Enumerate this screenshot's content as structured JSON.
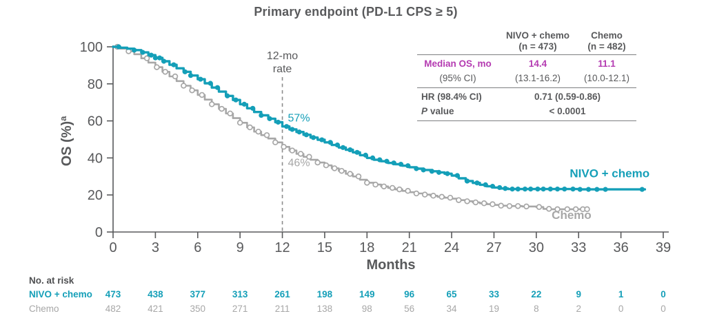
{
  "title": "Primary endpoint (PD-L1 CPS ≥ 5)",
  "colors": {
    "nivo": "#149FB8",
    "chemo": "#A7A7A7",
    "text": "#58595B",
    "magenta": "#B43BB1",
    "dash": "#8C8C8C"
  },
  "chart_data": {
    "type": "line",
    "subtype": "kaplan-meier-step",
    "title": "Primary endpoint (PD-L1 CPS ≥ 5)",
    "xlabel": "Months",
    "ylabel": "OS (%)",
    "ylabel_superscript": "a",
    "xlim": [
      0,
      39
    ],
    "ylim": [
      0,
      100
    ],
    "xticks": [
      0,
      3,
      6,
      9,
      12,
      15,
      18,
      21,
      24,
      27,
      30,
      33,
      36,
      39
    ],
    "yticks": [
      0,
      20,
      40,
      60,
      80,
      100
    ],
    "grid": false,
    "annotations": {
      "rate_line_label": "12-mo rate",
      "rate_line_x": 12,
      "nivo_rate_label": "57%",
      "nivo_rate_value": 57,
      "chemo_rate_label": "46%",
      "chemo_rate_value": 46
    },
    "series": [
      {
        "name": "Chemo",
        "color": "#A7A7A7",
        "marker": "open-circle",
        "points": [
          [
            0,
            100
          ],
          [
            0.5,
            99
          ],
          [
            1,
            97.6
          ],
          [
            1.5,
            96
          ],
          [
            2,
            93.8
          ],
          [
            2.5,
            91.5
          ],
          [
            3,
            89
          ],
          [
            3.5,
            86.5
          ],
          [
            4,
            84
          ],
          [
            4.5,
            81.5
          ],
          [
            5,
            79
          ],
          [
            5.5,
            76.5
          ],
          [
            6,
            74
          ],
          [
            6.5,
            71.5
          ],
          [
            7,
            69
          ],
          [
            7.5,
            66.5
          ],
          [
            8,
            64
          ],
          [
            8.5,
            61.5
          ],
          [
            9,
            59
          ],
          [
            9.5,
            56.5
          ],
          [
            10,
            54.2
          ],
          [
            10.5,
            52.3
          ],
          [
            11,
            50.5
          ],
          [
            11.5,
            48.4
          ],
          [
            12,
            46
          ],
          [
            12.5,
            44
          ],
          [
            13,
            42.2
          ],
          [
            13.5,
            40.6
          ],
          [
            14,
            39
          ],
          [
            14.5,
            37.5
          ],
          [
            15,
            36
          ],
          [
            15.5,
            34.4
          ],
          [
            16,
            33
          ],
          [
            16.5,
            31.4
          ],
          [
            17,
            30
          ],
          [
            17.5,
            28.2
          ],
          [
            18,
            26.6
          ],
          [
            18.5,
            25.6
          ],
          [
            19,
            24.6
          ],
          [
            19.5,
            23.8
          ],
          [
            20,
            23
          ],
          [
            20.5,
            22.2
          ],
          [
            21,
            21.5
          ],
          [
            21.5,
            20.8
          ],
          [
            22,
            20.2
          ],
          [
            22.5,
            19.6
          ],
          [
            23,
            19
          ],
          [
            23.5,
            18.5
          ],
          [
            24,
            18
          ],
          [
            24.5,
            17.2
          ],
          [
            25,
            16.6
          ],
          [
            25.5,
            16
          ],
          [
            26,
            15.5
          ],
          [
            26.5,
            15
          ],
          [
            27,
            14.6
          ],
          [
            27.5,
            14.2
          ],
          [
            28,
            14
          ],
          [
            29,
            13.8
          ],
          [
            30,
            13.5
          ],
          [
            30.5,
            12.5
          ],
          [
            31,
            12.3
          ],
          [
            33.7,
            12.3
          ]
        ],
        "censor_months": [
          0.3,
          1.1,
          2.4,
          3.1,
          3.7,
          4.4,
          5.0,
          5.6,
          6.3,
          7.0,
          7.7,
          8.3,
          9.0,
          9.7,
          10.3,
          10.9,
          11.5,
          12.1,
          12.7,
          13.3,
          13.9,
          14.5,
          15.1,
          15.7,
          16.2,
          16.8,
          17.4,
          18.0,
          18.6,
          19.2,
          19.8,
          20.3,
          20.9,
          21.5,
          22.1,
          22.7,
          23.3,
          23.9,
          24.5,
          25.1,
          25.7,
          26.3,
          26.9,
          27.5,
          28.1,
          28.7,
          29.3,
          30.2,
          30.9,
          31.5,
          32.2,
          32.8,
          33.3,
          33.6
        ],
        "label_pos": {
          "month": 32.5,
          "pct": 7
        }
      },
      {
        "name": "NIVO + chemo",
        "color": "#149FB8",
        "marker": "filled-circle",
        "points": [
          [
            0,
            100
          ],
          [
            0.5,
            99.5
          ],
          [
            1,
            99
          ],
          [
            1.5,
            98.2
          ],
          [
            2,
            97
          ],
          [
            2.5,
            95.5
          ],
          [
            3,
            94
          ],
          [
            3.5,
            92.2
          ],
          [
            4,
            90.3
          ],
          [
            4.5,
            88.4
          ],
          [
            5,
            86.5
          ],
          [
            5.5,
            84.5
          ],
          [
            6,
            82.5
          ],
          [
            6.5,
            80.3
          ],
          [
            7,
            78
          ],
          [
            7.5,
            75.8
          ],
          [
            8,
            73.5
          ],
          [
            8.5,
            71.3
          ],
          [
            9,
            69
          ],
          [
            9.5,
            66.8
          ],
          [
            10,
            64.8
          ],
          [
            10.5,
            63
          ],
          [
            11,
            61.2
          ],
          [
            11.5,
            59.3
          ],
          [
            12,
            57
          ],
          [
            12.5,
            55.4
          ],
          [
            13,
            54
          ],
          [
            13.5,
            52.5
          ],
          [
            14,
            51
          ],
          [
            14.5,
            49.8
          ],
          [
            15,
            48.4
          ],
          [
            15.5,
            47
          ],
          [
            16,
            45.6
          ],
          [
            16.5,
            44.4
          ],
          [
            17,
            43
          ],
          [
            17.5,
            41.5
          ],
          [
            18,
            40
          ],
          [
            18.5,
            39
          ],
          [
            19,
            38.2
          ],
          [
            19.5,
            37.3
          ],
          [
            20,
            36.6
          ],
          [
            20.5,
            35.8
          ],
          [
            21,
            35
          ],
          [
            21.5,
            34.2
          ],
          [
            22,
            33.5
          ],
          [
            22.5,
            32.8
          ],
          [
            23,
            32.2
          ],
          [
            23.5,
            31.5
          ],
          [
            24,
            30.5
          ],
          [
            24.5,
            29
          ],
          [
            25,
            27.5
          ],
          [
            25.5,
            26.5
          ],
          [
            26,
            25.5
          ],
          [
            26.5,
            24.7
          ],
          [
            27,
            24
          ],
          [
            27.5,
            23.5
          ],
          [
            28,
            23.2
          ],
          [
            30,
            23.2
          ],
          [
            33,
            23
          ],
          [
            37.7,
            23
          ]
        ],
        "censor_months": [
          0.4,
          1.5,
          2.1,
          2.7,
          3.0,
          3.3,
          3.6,
          4.3,
          5.1,
          5.5,
          6.2,
          6.9,
          7.4,
          8.1,
          8.7,
          9.3,
          9.9,
          10.5,
          11.1,
          11.7,
          12.3,
          12.7,
          13.2,
          13.7,
          14.2,
          14.8,
          15.4,
          15.9,
          16.3,
          16.8,
          17.3,
          17.9,
          18.4,
          18.9,
          19.4,
          19.9,
          20.4,
          20.9,
          21.5,
          22.0,
          22.6,
          23.1,
          23.7,
          24.4,
          25.1,
          25.8,
          26.4,
          26.9,
          27.4,
          27.8,
          28.3,
          28.7,
          29.2,
          29.6,
          30.1,
          30.5,
          31.0,
          31.5,
          32.0,
          32.6,
          33.1,
          33.7,
          34.3,
          34.9,
          37.5
        ],
        "label_pos": {
          "month": 35.2,
          "pct": 29.5
        }
      }
    ]
  },
  "stats_table": {
    "col_headers": [
      {
        "line1": "NIVO + chemo",
        "line2": "(n = 473)"
      },
      {
        "line1": "Chemo",
        "line2": "(n = 482)"
      }
    ],
    "median_row": {
      "label": "Median OS, mo",
      "nivo": "14.4",
      "chemo": "11.1"
    },
    "ci_row": {
      "label": "(95% CI)",
      "nivo": "(13.1-16.2)",
      "chemo": "(10.0-12.1)"
    },
    "hr_row": {
      "label": "HR (98.4% CI)",
      "value": "0.71 (0.59-0.86)"
    },
    "p_row": {
      "label_italic": "P",
      "label_rest": "value",
      "value": "< 0.0001"
    }
  },
  "risk_table": {
    "title": "No. at risk",
    "rows": [
      {
        "label": "NIVO + chemo",
        "color": "#149FB8",
        "bold_label": true,
        "values": [
          "473",
          "438",
          "377",
          "313",
          "261",
          "198",
          "149",
          "96",
          "65",
          "33",
          "22",
          "9",
          "1",
          "0"
        ]
      },
      {
        "label": "Chemo",
        "color": "#A7A7A7",
        "bold_label": false,
        "values": [
          "482",
          "421",
          "350",
          "271",
          "211",
          "138",
          "98",
          "56",
          "34",
          "19",
          "8",
          "2",
          "0",
          "0"
        ]
      }
    ]
  }
}
